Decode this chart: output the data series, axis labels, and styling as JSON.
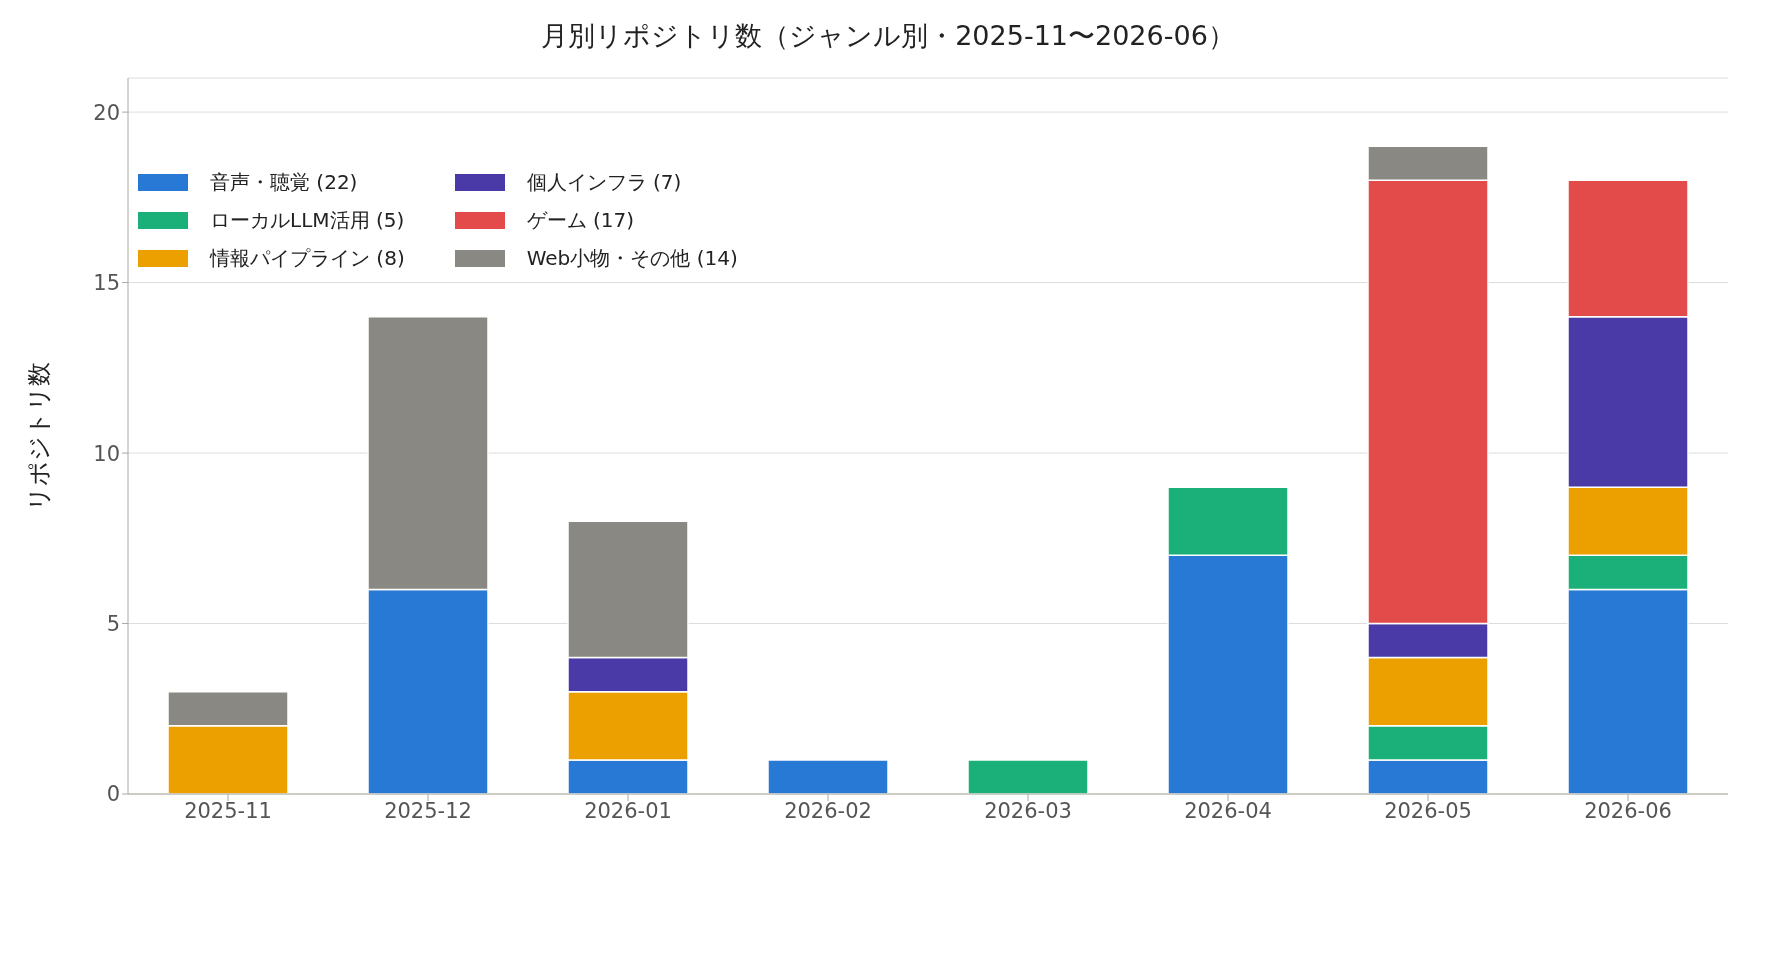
{
  "chart_data": {
    "type": "bar",
    "title": "月別リポジトリ数（ジャンル別・2025-11〜2026-06）",
    "ylabel": "リポジトリ数",
    "categories": [
      "2025-11",
      "2025-12",
      "2026-01",
      "2026-02",
      "2026-03",
      "2026-04",
      "2026-05",
      "2026-06"
    ],
    "stacked": true,
    "series": [
      {
        "name": "音声・聴覚 (22)",
        "color": "#2878d6",
        "values": [
          0,
          6,
          1,
          1,
          0,
          7,
          1,
          6
        ]
      },
      {
        "name": "ローカルLLM活用 (5)",
        "color": "#1bb07a",
        "values": [
          0,
          0,
          0,
          0,
          1,
          2,
          1,
          1
        ]
      },
      {
        "name": "情報パイプライン (8)",
        "color": "#eca000",
        "values": [
          2,
          0,
          2,
          0,
          0,
          0,
          2,
          2
        ]
      },
      {
        "name": "個人インフラ (7)",
        "color": "#4a3aa8",
        "values": [
          0,
          0,
          1,
          0,
          0,
          0,
          1,
          5
        ]
      },
      {
        "name": "ゲーム (17)",
        "color": "#e34b4b",
        "values": [
          0,
          0,
          0,
          0,
          0,
          0,
          13,
          4
        ]
      },
      {
        "name": "Web小物・その他 (14)",
        "color": "#898883",
        "values": [
          1,
          8,
          4,
          0,
          0,
          0,
          1,
          0
        ]
      }
    ],
    "ylim": [
      0,
      21
    ],
    "yticks": [
      0,
      5,
      10,
      15,
      20
    ],
    "grid": "y",
    "legend": "top left"
  }
}
